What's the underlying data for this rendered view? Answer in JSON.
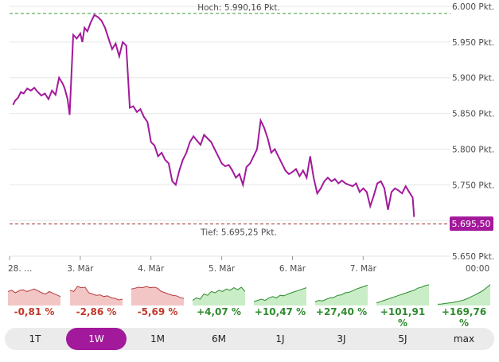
{
  "chart_data": {
    "type": "line",
    "ylim": [
      5650,
      6000
    ],
    "yticks": [
      5650,
      5700,
      5750,
      5800,
      5850,
      5900,
      5950,
      6000
    ],
    "ytick_labels": [
      "5.650 Pkt.",
      "5.700 Pkt.",
      "5.750 Pkt.",
      "5.800 Pkt.",
      "5.850 Pkt.",
      "5.900 Pkt.",
      "5.950 Pkt.",
      "6.000 Pkt."
    ],
    "xticks": [
      {
        "t": 0.0,
        "label": "28. …"
      },
      {
        "t": 1.0,
        "label": "3. Mär"
      },
      {
        "t": 2.0,
        "label": "4. Mär"
      },
      {
        "t": 3.0,
        "label": "5. Mär"
      },
      {
        "t": 4.0,
        "label": "6. Mär"
      },
      {
        "t": 5.0,
        "label": "7. Mär"
      },
      {
        "t": 6.2,
        "label": "00:00"
      }
    ],
    "xlim": [
      0,
      6.2
    ],
    "high": {
      "value": 5990.16,
      "label": "Hoch: 5.990,16 Pkt."
    },
    "low": {
      "value": 5695.25,
      "label": "Tief: 5.695,25 Pkt."
    },
    "last": {
      "value": 5695.5,
      "label": "5.695,50"
    },
    "series": [
      {
        "x": [
          0.05,
          0.08,
          0.12,
          0.16,
          0.2,
          0.25,
          0.3,
          0.35,
          0.4,
          0.45,
          0.5,
          0.55,
          0.6,
          0.65,
          0.7,
          0.75,
          0.78,
          0.82,
          0.85,
          0.9,
          0.95,
          1.0,
          1.03,
          1.06,
          1.1,
          1.15,
          1.2,
          1.25,
          1.3,
          1.35,
          1.4,
          1.45,
          1.5,
          1.55,
          1.6,
          1.65,
          1.7,
          1.75,
          1.8,
          1.85,
          1.9,
          1.95,
          2.0,
          2.05,
          2.1,
          2.15,
          2.2,
          2.25,
          2.3,
          2.35,
          2.4,
          2.45,
          2.5,
          2.55,
          2.6,
          2.65,
          2.7,
          2.75,
          2.8,
          2.85,
          2.9,
          2.95,
          3.0,
          3.05,
          3.1,
          3.15,
          3.2,
          3.25,
          3.3,
          3.35,
          3.4,
          3.45,
          3.5,
          3.55,
          3.6,
          3.65,
          3.7,
          3.75,
          3.8,
          3.85,
          3.9,
          3.95,
          4.0,
          4.05,
          4.1,
          4.15,
          4.2,
          4.25,
          4.3,
          4.35,
          4.4,
          4.45,
          4.5,
          4.55,
          4.6,
          4.65,
          4.7,
          4.75,
          4.8,
          4.85,
          4.9,
          4.95,
          5.0,
          5.05,
          5.1,
          5.15,
          5.2,
          5.25,
          5.3,
          5.35,
          5.4,
          5.45,
          5.5,
          5.55,
          5.6,
          5.65,
          5.7,
          5.72
        ],
        "values": [
          5862,
          5868,
          5872,
          5880,
          5878,
          5885,
          5882,
          5886,
          5880,
          5875,
          5878,
          5870,
          5882,
          5876,
          5900,
          5892,
          5885,
          5870,
          5848,
          5960,
          5955,
          5962,
          5950,
          5970,
          5965,
          5978,
          5988,
          5985,
          5980,
          5970,
          5955,
          5940,
          5948,
          5930,
          5950,
          5945,
          5858,
          5860,
          5852,
          5856,
          5845,
          5838,
          5810,
          5805,
          5790,
          5795,
          5785,
          5780,
          5755,
          5750,
          5770,
          5785,
          5795,
          5810,
          5818,
          5812,
          5806,
          5820,
          5815,
          5810,
          5800,
          5790,
          5780,
          5776,
          5778,
          5770,
          5760,
          5765,
          5750,
          5775,
          5780,
          5790,
          5800,
          5840,
          5830,
          5815,
          5795,
          5800,
          5790,
          5780,
          5770,
          5765,
          5768,
          5772,
          5762,
          5770,
          5760,
          5790,
          5760,
          5738,
          5745,
          5755,
          5760,
          5755,
          5758,
          5752,
          5756,
          5752,
          5750,
          5748,
          5752,
          5740,
          5745,
          5740,
          5720,
          5735,
          5752,
          5755,
          5745,
          5715,
          5740,
          5745,
          5742,
          5738,
          5748,
          5740,
          5732,
          5705
        ]
      }
    ],
    "performance": [
      {
        "label": "-0,81 %",
        "sign": "neg",
        "values": [
          0.55,
          0.6,
          0.5,
          0.58,
          0.62,
          0.55,
          0.6,
          0.65,
          0.58,
          0.5,
          0.45,
          0.55,
          0.48,
          0.42,
          0.35
        ]
      },
      {
        "label": "-2,86 %",
        "sign": "neg",
        "values": [
          0.6,
          0.55,
          0.75,
          0.7,
          0.72,
          0.5,
          0.45,
          0.4,
          0.42,
          0.35,
          0.38,
          0.3,
          0.28,
          0.22,
          0.25
        ]
      },
      {
        "label": "-5,69 %",
        "sign": "neg",
        "values": [
          0.65,
          0.68,
          0.72,
          0.7,
          0.75,
          0.7,
          0.72,
          0.68,
          0.55,
          0.5,
          0.45,
          0.4,
          0.38,
          0.32,
          0.28
        ]
      },
      {
        "label": "+4,07 %",
        "sign": "pos",
        "values": [
          0.2,
          0.3,
          0.25,
          0.45,
          0.4,
          0.55,
          0.5,
          0.6,
          0.55,
          0.65,
          0.6,
          0.7,
          0.62,
          0.72,
          0.55
        ]
      },
      {
        "label": "+10,47 %",
        "sign": "pos",
        "values": [
          0.15,
          0.2,
          0.25,
          0.2,
          0.3,
          0.35,
          0.3,
          0.4,
          0.38,
          0.45,
          0.5,
          0.55,
          0.6,
          0.65,
          0.7
        ]
      },
      {
        "label": "+27,40 %",
        "sign": "pos",
        "values": [
          0.15,
          0.2,
          0.18,
          0.25,
          0.3,
          0.32,
          0.4,
          0.42,
          0.5,
          0.52,
          0.58,
          0.65,
          0.7,
          0.75,
          0.8
        ]
      },
      {
        "label": "+101,91 %",
        "sign": "pos",
        "values": [
          0.1,
          0.15,
          0.2,
          0.25,
          0.3,
          0.35,
          0.4,
          0.45,
          0.5,
          0.55,
          0.6,
          0.68,
          0.72,
          0.78,
          0.82
        ]
      },
      {
        "label": "+169,76 %",
        "sign": "pos",
        "values": [
          0.05,
          0.06,
          0.08,
          0.1,
          0.12,
          0.15,
          0.18,
          0.22,
          0.28,
          0.35,
          0.42,
          0.5,
          0.58,
          0.7,
          0.82
        ]
      }
    ],
    "colors": {
      "line": "#a3199b",
      "high": "#3a9b3a",
      "low": "#9b2a2a",
      "neg_fill": "#f3c6c6",
      "neg_line": "#b73a3a",
      "pos_fill": "#c9edc6",
      "pos_line": "#2e8b2e"
    }
  },
  "ranges": [
    {
      "label": "1T",
      "active": false
    },
    {
      "label": "1W",
      "active": true
    },
    {
      "label": "1M",
      "active": false
    },
    {
      "label": "6M",
      "active": false
    },
    {
      "label": "1J",
      "active": false
    },
    {
      "label": "3J",
      "active": false
    },
    {
      "label": "5J",
      "active": false
    },
    {
      "label": "max",
      "active": false
    }
  ]
}
